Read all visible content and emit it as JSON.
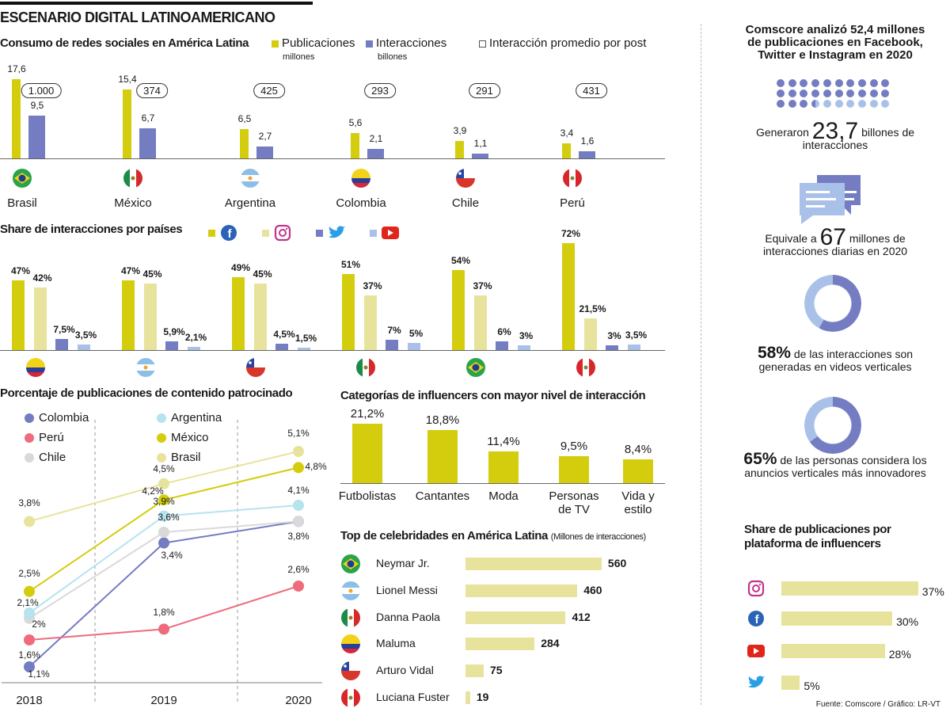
{
  "title": "ESCENARIO DIGITAL LATINOAMERICANO",
  "colors": {
    "yellow": "#d4cd0d",
    "blue": "#747cc2",
    "light_yellow": "#e8e39c",
    "light_blue": "#a9c0e8"
  },
  "chart_data": [
    {
      "type": "bar",
      "title": "Consumo de redes sociales en América Latina",
      "categories": [
        "Brasil",
        "México",
        "Argentina",
        "Colombia",
        "Chile",
        "Perú"
      ],
      "series": [
        {
          "name": "Publicaciones",
          "unit": "millones",
          "values": [
            17.6,
            15.4,
            6.5,
            5.6,
            3.9,
            3.4
          ],
          "labels": [
            "17,6",
            "15,4",
            "6,5",
            "5,6",
            "3,9",
            "3,4"
          ]
        },
        {
          "name": "Interacciones",
          "unit": "billones",
          "values": [
            9.5,
            6.7,
            2.7,
            2.1,
            1.1,
            1.6
          ],
          "labels": [
            "9,5",
            "6,7",
            "2,7",
            "2,1",
            "1,1",
            "1,6"
          ]
        },
        {
          "name": "Interacción promedio por post",
          "values": [
            1000,
            374,
            425,
            293,
            291,
            431
          ],
          "labels": [
            "1.000",
            "374",
            "425",
            "293",
            "291",
            "431"
          ]
        }
      ],
      "flags": [
        "brasil",
        "mexico",
        "argentina",
        "colombia",
        "chile",
        "peru"
      ]
    },
    {
      "type": "bar",
      "title": "Share de interacciones por países",
      "categories": [
        "Colombia",
        "Argentina",
        "Chile",
        "México",
        "Brasil",
        "Perú"
      ],
      "flags": [
        "colombia",
        "argentina",
        "chile",
        "mexico",
        "brasil",
        "peru"
      ],
      "legend_icons": [
        "facebook-icon",
        "instagram-icon",
        "twitter-icon",
        "youtube-icon"
      ],
      "series": [
        {
          "platform": "Facebook",
          "values": [
            47,
            47,
            49,
            51,
            54,
            72
          ],
          "labels": [
            "47%",
            "47%",
            "49%",
            "51%",
            "54%",
            "72%"
          ]
        },
        {
          "platform": "Instagram",
          "values": [
            42,
            45,
            45,
            37,
            37,
            21.5
          ],
          "labels": [
            "42%",
            "45%",
            "45%",
            "37%",
            "37%",
            "21,5%"
          ]
        },
        {
          "platform": "Twitter",
          "values": [
            7.5,
            5.9,
            4.5,
            7,
            6,
            3
          ],
          "labels": [
            "7,5%",
            "5,9%",
            "4,5%",
            "7%",
            "6%",
            "3%"
          ]
        },
        {
          "platform": "YouTube",
          "values": [
            3.5,
            2.1,
            1.5,
            5,
            3,
            3.5
          ],
          "labels": [
            "3,5%",
            "2,1%",
            "1,5%",
            "5%",
            "3%",
            "3,5%"
          ]
        }
      ]
    },
    {
      "type": "line",
      "title": "Porcentaje de publicaciones de contenido patrocinado",
      "x": [
        "2018",
        "2019",
        "2020"
      ],
      "series": [
        {
          "name": "Colombia",
          "color": "#747cc2",
          "values": [
            1.1,
            3.4,
            3.8
          ],
          "labels": [
            "1,1%",
            "3,4%",
            ""
          ]
        },
        {
          "name": "Perú",
          "color": "#ee6b7c",
          "values": [
            1.6,
            1.8,
            2.6
          ],
          "labels": [
            "1,6%",
            "1,8%",
            "2,6%"
          ]
        },
        {
          "name": "Chile",
          "color": "#d9d9d9",
          "values": [
            2,
            3.6,
            3.8
          ],
          "labels": [
            "2%",
            "3,6%",
            "3,8%"
          ]
        },
        {
          "name": "Argentina",
          "color": "#b5e3ee",
          "values": [
            2.1,
            3.9,
            4.1
          ],
          "labels": [
            "2,1%",
            "3,9%",
            "4,1%"
          ]
        },
        {
          "name": "México",
          "color": "#d4cd0d",
          "values": [
            2.5,
            4.2,
            4.8
          ],
          "labels": [
            "2,5%",
            "4,2%",
            "4,8%"
          ]
        },
        {
          "name": "Brasil",
          "color": "#e8e39c",
          "values": [
            3.8,
            4.5,
            5.1
          ],
          "labels": [
            "3,8%",
            "4,5%",
            "5,1%"
          ]
        }
      ]
    },
    {
      "type": "bar",
      "title": "Categorías de influencers con mayor nivel de interacción",
      "categories": [
        "Futbolistas",
        "Cantantes",
        "Moda",
        "Personas de TV",
        "Vida y estilo"
      ],
      "values": [
        21.2,
        18.8,
        11.4,
        9.5,
        8.4
      ],
      "labels": [
        "21,2%",
        "18,8%",
        "11,4%",
        "9,5%",
        "8,4%"
      ]
    },
    {
      "type": "bar",
      "title": "Top de celebridades en América Latina",
      "unit": "(Millones de interacciones)",
      "categories": [
        "Neymar Jr.",
        "Lionel Messi",
        "Danna Paola",
        "Maluma",
        "Arturo Vidal",
        "Luciana Fuster"
      ],
      "flags": [
        "brasil",
        "argentina",
        "mexico",
        "colombia",
        "chile",
        "peru"
      ],
      "values": [
        560,
        460,
        412,
        284,
        75,
        19
      ]
    },
    {
      "type": "pie",
      "values": [
        58
      ],
      "text": "58%",
      "caption": "de las interacciones son generadas en videos verticales"
    },
    {
      "type": "pie",
      "values": [
        65
      ],
      "text": "65%",
      "caption": "de las personas considera los anuncios verticales más innovadores"
    },
    {
      "type": "bar",
      "title": "Share de publicaciones por plataforma de influencers",
      "categories": [
        "Instagram",
        "Facebook",
        "YouTube",
        "Twitter"
      ],
      "icons": [
        "instagram-icon",
        "facebook-icon",
        "youtube-icon",
        "twitter-icon"
      ],
      "values": [
        37,
        30,
        28,
        5
      ],
      "labels": [
        "37%",
        "30%",
        "28%",
        "5%"
      ]
    }
  ],
  "right": {
    "headline": "Comscore analizó 52,4 millones de publicaciones en Facebook, Twitter e Instagram en 2020",
    "dots_filled": 23.7,
    "gen_pre": "Generaron",
    "gen_num": "23,7",
    "gen_post": "billones de interacciones",
    "eq_pre": "Equivale a",
    "eq_num": "67",
    "eq_post": "millones de interacciones diarias en 2020"
  },
  "source": "Fuente: Comscore / Gráfico: LR-VT"
}
